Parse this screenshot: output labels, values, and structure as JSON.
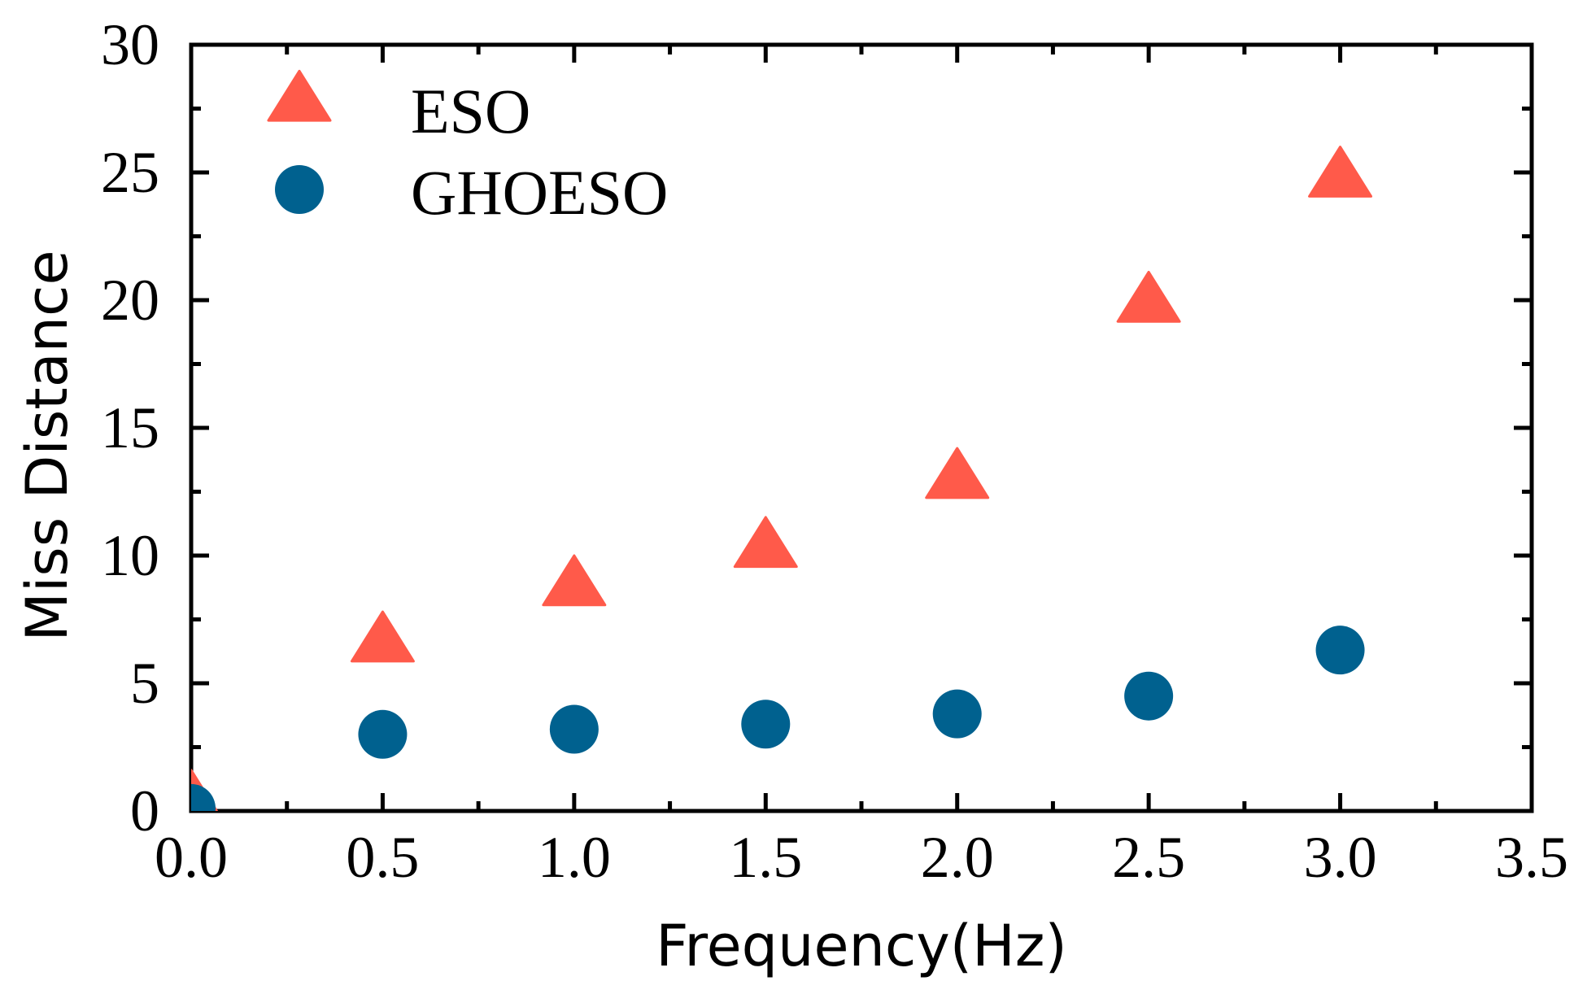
{
  "chart_data": {
    "type": "scatter",
    "title": "",
    "xlabel": "Frequency(Hz)",
    "ylabel": "Miss Distance",
    "xlim": [
      0.0,
      3.5
    ],
    "ylim": [
      0,
      30
    ],
    "grid": false,
    "legend_position": "top-left",
    "x_ticks": [
      0.0,
      0.5,
      1.0,
      1.5,
      2.0,
      2.5,
      3.0,
      3.5
    ],
    "x_tick_labels": [
      "0.0",
      "0.5",
      "1.0",
      "1.5",
      "2.0",
      "2.5",
      "3.0",
      "3.5"
    ],
    "y_ticks": [
      0,
      5,
      10,
      15,
      20,
      25,
      30
    ],
    "y_tick_labels": [
      "0",
      "5",
      "10",
      "15",
      "20",
      "25",
      "30"
    ],
    "series": [
      {
        "name": "ESO",
        "marker": "triangle",
        "color": "#FF5A4A",
        "x": [
          0.0,
          0.5,
          1.0,
          1.5,
          2.0,
          2.5,
          3.0
        ],
        "y": [
          0.4,
          6.6,
          8.8,
          10.3,
          13.0,
          19.9,
          24.8
        ]
      },
      {
        "name": "GHOESO",
        "marker": "circle",
        "color": "#00618F",
        "x": [
          0.0,
          0.5,
          1.0,
          1.5,
          2.0,
          2.5,
          3.0
        ],
        "y": [
          0.1,
          3.0,
          3.2,
          3.4,
          3.8,
          4.5,
          6.3
        ]
      }
    ]
  }
}
